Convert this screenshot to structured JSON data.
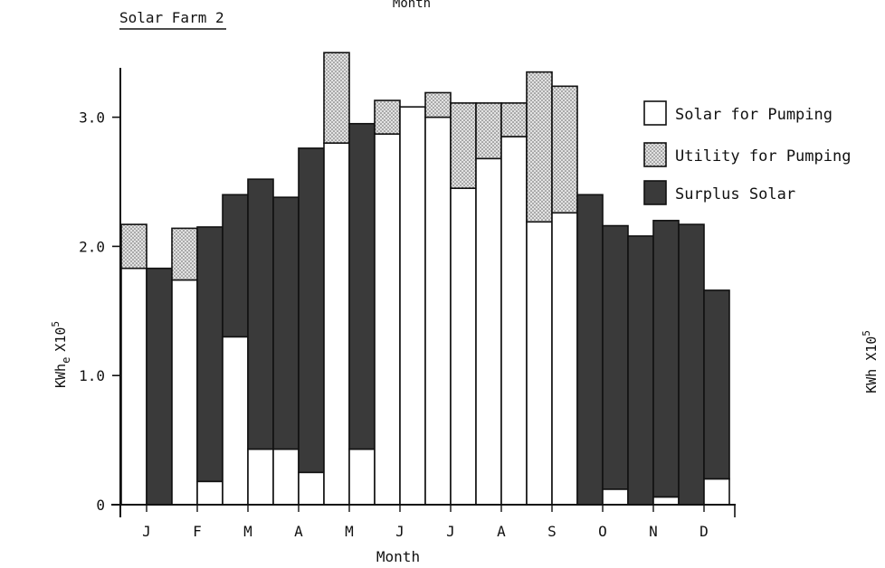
{
  "header_text": "Month",
  "chart_data": {
    "type": "bar",
    "stacked": true,
    "title": "Solar Farm 2",
    "xlabel": "Month",
    "ylabel": "KWh",
    "ylabel_sub": "e",
    "ylabel_mult": "X10",
    "ylabel_exp": "5",
    "right_edge_label": "KWh X10",
    "right_edge_exp": "5",
    "ylim": [
      0,
      3.5
    ],
    "yticks": [
      {
        "value": 0,
        "label": "0"
      },
      {
        "value": 1.0,
        "label": "1.0"
      },
      {
        "value": 2.0,
        "label": "2.0"
      },
      {
        "value": 3.0,
        "label": "3.0"
      }
    ],
    "month_labels": [
      "J",
      "F",
      "M",
      "A",
      "M",
      "J",
      "J",
      "A",
      "S",
      "O",
      "N",
      "D"
    ],
    "legend": [
      {
        "key": "solar_pumping",
        "label": "Solar for Pumping"
      },
      {
        "key": "utility_pumping",
        "label": "Utility for Pumping"
      },
      {
        "key": "surplus_solar",
        "label": "Surplus Solar"
      }
    ],
    "legend_position": "top-right",
    "colors": {
      "solar_pumping": "#ffffff",
      "utility_pumping": "#dcdcdc",
      "surplus_solar": "#3a3a3a",
      "outline": "#111111"
    },
    "bars": [
      {
        "solar_pumping": 1.83,
        "utility_pumping": 0.34,
        "surplus_solar": 0.0
      },
      {
        "solar_pumping": 0.0,
        "utility_pumping": 0.0,
        "surplus_solar": 1.83
      },
      {
        "solar_pumping": 1.74,
        "utility_pumping": 0.4,
        "surplus_solar": 0.0
      },
      {
        "solar_pumping": 0.18,
        "utility_pumping": 0.0,
        "surplus_solar": 1.97
      },
      {
        "solar_pumping": 1.3,
        "utility_pumping": 0.0,
        "surplus_solar": 1.1
      },
      {
        "solar_pumping": 0.43,
        "utility_pumping": 0.0,
        "surplus_solar": 2.09
      },
      {
        "solar_pumping": 0.43,
        "utility_pumping": 0.0,
        "surplus_solar": 1.95
      },
      {
        "solar_pumping": 0.25,
        "utility_pumping": 0.0,
        "surplus_solar": 2.51
      },
      {
        "solar_pumping": 2.8,
        "utility_pumping": 0.7,
        "surplus_solar": 0.0
      },
      {
        "solar_pumping": 0.43,
        "utility_pumping": 0.0,
        "surplus_solar": 2.52
      },
      {
        "solar_pumping": 2.87,
        "utility_pumping": 0.26,
        "surplus_solar": 0.0
      },
      {
        "solar_pumping": 3.08,
        "utility_pumping": 0.0,
        "surplus_solar": 0.0
      },
      {
        "solar_pumping": 3.0,
        "utility_pumping": 0.19,
        "surplus_solar": 0.0
      },
      {
        "solar_pumping": 2.45,
        "utility_pumping": 0.66,
        "surplus_solar": 0.0
      },
      {
        "solar_pumping": 2.68,
        "utility_pumping": 0.43,
        "surplus_solar": 0.0
      },
      {
        "solar_pumping": 2.85,
        "utility_pumping": 0.26,
        "surplus_solar": 0.0
      },
      {
        "solar_pumping": 2.19,
        "utility_pumping": 1.16,
        "surplus_solar": 0.0
      },
      {
        "solar_pumping": 2.26,
        "utility_pumping": 0.98,
        "surplus_solar": 0.0
      },
      {
        "solar_pumping": 0.0,
        "utility_pumping": 0.0,
        "surplus_solar": 2.4
      },
      {
        "solar_pumping": 0.12,
        "utility_pumping": 0.0,
        "surplus_solar": 2.04
      },
      {
        "solar_pumping": 0.0,
        "utility_pumping": 0.0,
        "surplus_solar": 2.08
      },
      {
        "solar_pumping": 0.06,
        "utility_pumping": 0.0,
        "surplus_solar": 2.14
      },
      {
        "solar_pumping": 0.0,
        "utility_pumping": 0.0,
        "surplus_solar": 2.17
      },
      {
        "solar_pumping": 0.2,
        "utility_pumping": 0.0,
        "surplus_solar": 1.46
      }
    ]
  }
}
